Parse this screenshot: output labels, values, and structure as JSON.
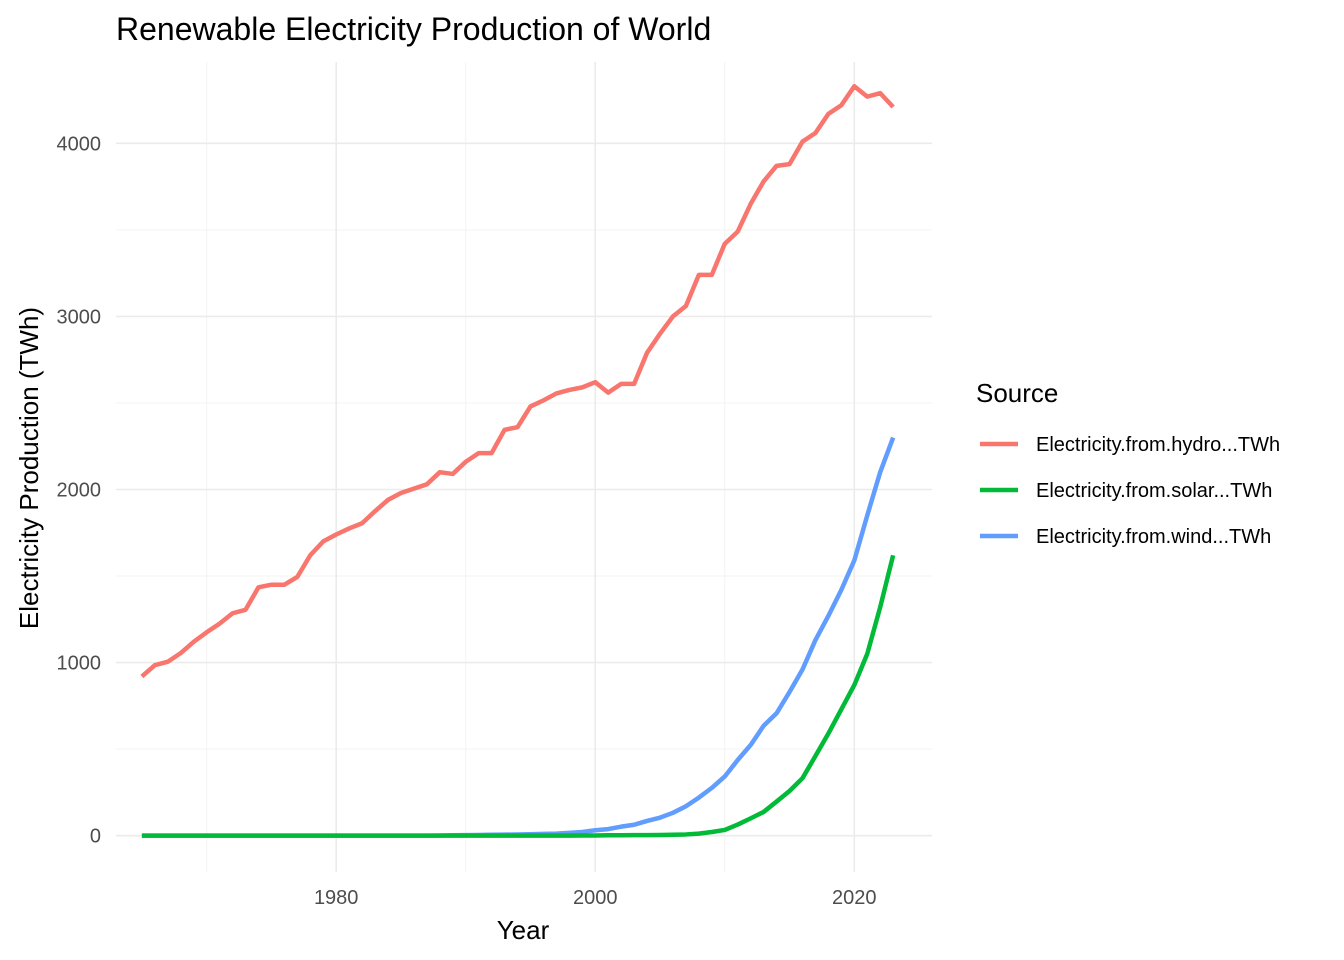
{
  "chart_data": {
    "type": "line",
    "title": "Renewable Electricity Production of World",
    "xlabel": "Year",
    "ylabel": "Electricity Production (TWh)",
    "xlim": [
      1963.0,
      2026.0
    ],
    "ylim": [
      -210,
      4470
    ],
    "x_major_ticks": [
      1980,
      2000,
      2020
    ],
    "x_minor_ticks": [
      1970,
      1990,
      2010
    ],
    "y_major_ticks": [
      0,
      1000,
      2000,
      3000,
      4000
    ],
    "y_minor_ticks": [
      500,
      1500,
      2500,
      3500
    ],
    "grid": true,
    "legend": {
      "title": "Source",
      "position": "right"
    },
    "x": [
      1965,
      1966,
      1967,
      1968,
      1969,
      1970,
      1971,
      1972,
      1973,
      1974,
      1975,
      1976,
      1977,
      1978,
      1979,
      1980,
      1981,
      1982,
      1983,
      1984,
      1985,
      1986,
      1987,
      1988,
      1989,
      1990,
      1991,
      1992,
      1993,
      1994,
      1995,
      1996,
      1997,
      1998,
      1999,
      2000,
      2001,
      2002,
      2003,
      2004,
      2005,
      2006,
      2007,
      2008,
      2009,
      2010,
      2011,
      2012,
      2013,
      2014,
      2015,
      2016,
      2017,
      2018,
      2019,
      2020,
      2021,
      2022,
      2023
    ],
    "series": [
      {
        "name": "Electricity.from.hydro...TWh",
        "color": "#F8766D",
        "values": [
          920,
          985,
          1005,
          1055,
          1120,
          1175,
          1225,
          1285,
          1305,
          1435,
          1450,
          1450,
          1495,
          1620,
          1700,
          1740,
          1775,
          1805,
          1875,
          1940,
          1980,
          2005,
          2030,
          2100,
          2090,
          2160,
          2210,
          2210,
          2345,
          2360,
          2480,
          2515,
          2555,
          2575,
          2590,
          2620,
          2560,
          2610,
          2610,
          2790,
          2900,
          3000,
          3060,
          3240,
          3240,
          3420,
          3490,
          3650,
          3780,
          3870,
          3880,
          4010,
          4060,
          4170,
          4220,
          4330,
          4270,
          4290,
          4210
        ]
      },
      {
        "name": "Electricity.from.solar...TWh",
        "color": "#00BA38",
        "values": [
          0,
          0,
          0,
          0,
          0,
          0,
          0,
          0,
          0,
          0,
          0,
          0,
          0,
          0,
          0,
          0,
          0,
          0,
          0,
          0,
          0,
          0,
          0,
          0,
          0,
          0,
          0,
          0,
          0,
          0,
          0.5,
          0.5,
          0.5,
          0.5,
          1,
          1,
          2,
          2,
          3,
          3,
          4,
          5,
          7,
          12,
          21,
          33,
          64,
          100,
          137,
          197,
          258,
          332,
          460,
          590,
          730,
          870,
          1050,
          1320,
          1620
        ]
      },
      {
        "name": "Electricity.from.wind...TWh",
        "color": "#619CFF",
        "values": [
          0,
          0,
          0,
          0,
          0,
          0,
          0,
          0,
          0,
          0,
          0,
          0,
          0,
          0,
          0,
          0,
          0,
          0,
          0,
          0,
          0,
          0,
          0,
          1,
          2,
          3,
          4,
          5,
          6,
          7,
          8,
          10,
          12,
          16,
          21,
          31,
          38,
          52,
          63,
          85,
          104,
          132,
          170,
          220,
          276,
          342,
          437,
          524,
          635,
          707,
          830,
          960,
          1130,
          1270,
          1420,
          1590,
          1850,
          2100,
          2300
        ]
      }
    ]
  }
}
